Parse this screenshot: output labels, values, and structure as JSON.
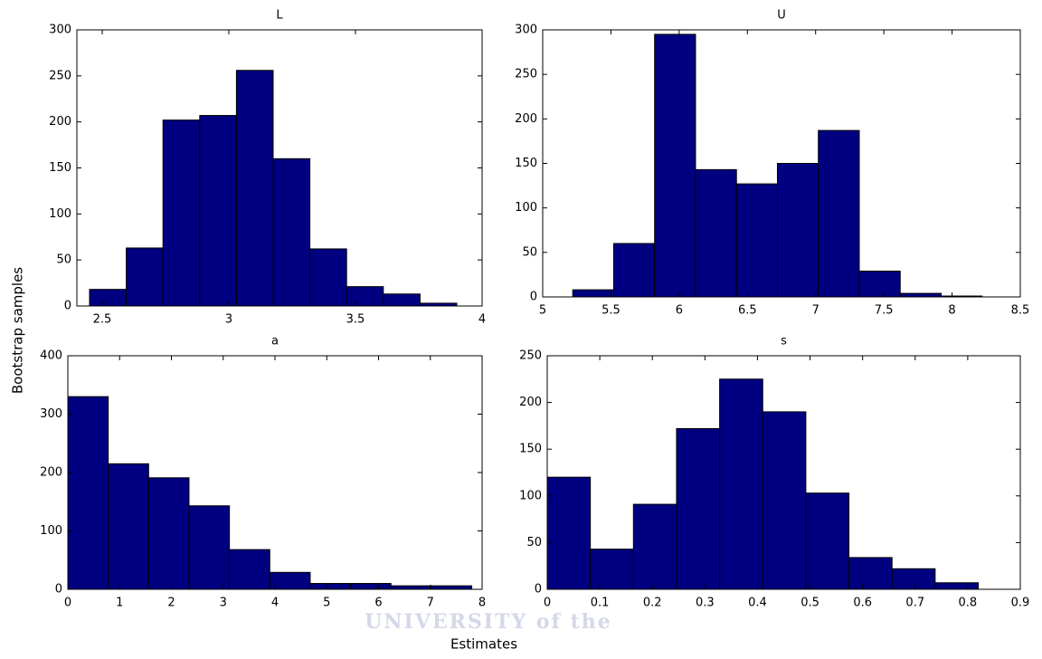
{
  "figure": {
    "ylabel": "Bootstrap samples",
    "xlabel": "Estimates",
    "watermark": "UNIVERSITY of the"
  },
  "chart_data": [
    {
      "type": "histogram",
      "title": "L",
      "color": "#000080",
      "bins": [
        2.45,
        2.595,
        2.74,
        2.885,
        3.03,
        3.175,
        3.32,
        3.465,
        3.61,
        3.755,
        3.9
      ],
      "values": [
        18,
        63,
        202,
        207,
        256,
        160,
        62,
        21,
        13,
        3
      ],
      "xlim": [
        2.4,
        4
      ],
      "xticks": [
        2.5,
        3,
        3.5,
        4
      ],
      "ylim": [
        0,
        300
      ],
      "yticks": [
        0,
        50,
        100,
        150,
        200,
        250,
        300
      ]
    },
    {
      "type": "histogram",
      "title": "U",
      "color": "#000080",
      "bins": [
        5.22,
        5.52,
        5.82,
        6.12,
        6.42,
        6.72,
        7.02,
        7.32,
        7.62,
        7.92,
        8.22
      ],
      "values": [
        8,
        60,
        295,
        143,
        127,
        150,
        187,
        29,
        4,
        1
      ],
      "xlim": [
        5,
        8.5
      ],
      "xticks": [
        5,
        5.5,
        6,
        6.5,
        7,
        7.5,
        8,
        8.5
      ],
      "ylim": [
        0,
        300
      ],
      "yticks": [
        0,
        50,
        100,
        150,
        200,
        250,
        300
      ]
    },
    {
      "type": "histogram",
      "title": "a",
      "color": "#000080",
      "bins": [
        0,
        0.78,
        1.56,
        2.34,
        3.12,
        3.9,
        4.68,
        5.46,
        6.24,
        7.02,
        7.8
      ],
      "values": [
        330,
        215,
        191,
        143,
        68,
        29,
        10,
        10,
        6,
        6
      ],
      "xlim": [
        0,
        8
      ],
      "xticks": [
        0,
        1,
        2,
        3,
        4,
        5,
        6,
        7,
        8
      ],
      "ylim": [
        0,
        400
      ],
      "yticks": [
        0,
        100,
        200,
        300,
        400
      ]
    },
    {
      "type": "histogram",
      "title": "s",
      "color": "#000080",
      "bins": [
        0,
        0.082,
        0.164,
        0.246,
        0.328,
        0.41,
        0.492,
        0.574,
        0.656,
        0.738,
        0.82
      ],
      "values": [
        120,
        43,
        91,
        172,
        225,
        190,
        103,
        34,
        22,
        7
      ],
      "xlim": [
        0,
        0.9
      ],
      "xticks": [
        0,
        0.1,
        0.2,
        0.3,
        0.4,
        0.5,
        0.6,
        0.7,
        0.8,
        0.9
      ],
      "ylim": [
        0,
        250
      ],
      "yticks": [
        0,
        50,
        100,
        150,
        200,
        250
      ]
    }
  ]
}
